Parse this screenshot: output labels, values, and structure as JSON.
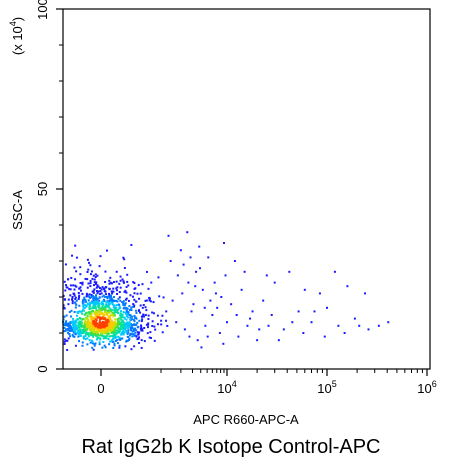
{
  "chart_data": {
    "type": "scatter",
    "subtype": "flow-cytometry-density-dot-plot",
    "title": "Rat IgG2b K Isotope Control-APC",
    "xlabel": "APC R660-APC-A",
    "ylabel": "SSC-A",
    "y_multiplier_label": "(x 10",
    "y_multiplier_exponent": "4",
    "y_multiplier_suffix": ")",
    "x_scale": "biexponential",
    "y_scale": "linear",
    "y_unit": 10000,
    "ylim": [
      0,
      100
    ],
    "xlim": [
      -1500,
      1000000
    ],
    "x_ticks": [
      {
        "value": 0,
        "base": "0",
        "exp": ""
      },
      {
        "value": 10000,
        "base": "10",
        "exp": "4"
      },
      {
        "value": 100000,
        "base": "10",
        "exp": "5"
      },
      {
        "value": 1000000,
        "base": "10",
        "exp": "6"
      }
    ],
    "y_ticks": [
      {
        "value": 0,
        "label": "0"
      },
      {
        "value": 50,
        "label": "50"
      },
      {
        "value": 100,
        "label": "100"
      }
    ],
    "grid": false,
    "legend": "none",
    "density_colors": [
      "#1a1aff",
      "#0078ff",
      "#00c8ff",
      "#00e0a0",
      "#40e040",
      "#c8e000",
      "#ffc800",
      "#ff4000"
    ],
    "population": {
      "name": "main cluster",
      "x_center": 0,
      "x_spread": 380,
      "y_center": 13,
      "y_spread": 4.5,
      "y_range": [
        5,
        40
      ],
      "event_count": 1400
    },
    "sparse_events": [
      [
        1300,
        37
      ],
      [
        2500,
        38
      ],
      [
        3800,
        34
      ],
      [
        5200,
        31
      ],
      [
        9000,
        35
      ],
      [
        12000,
        30
      ],
      [
        1800,
        26
      ],
      [
        2600,
        24
      ],
      [
        3400,
        27
      ],
      [
        4300,
        22
      ],
      [
        6500,
        24
      ],
      [
        8200,
        20
      ],
      [
        11000,
        18
      ],
      [
        14000,
        22
      ],
      [
        18000,
        16
      ],
      [
        23000,
        19
      ],
      [
        30000,
        24
      ],
      [
        42000,
        27
      ],
      [
        60000,
        22
      ],
      [
        85000,
        21
      ],
      [
        120000,
        27
      ],
      [
        160000,
        23
      ],
      [
        240000,
        21
      ],
      [
        1200,
        16
      ],
      [
        1700,
        13
      ],
      [
        2300,
        11
      ],
      [
        2900,
        16
      ],
      [
        3600,
        8
      ],
      [
        4700,
        12
      ],
      [
        6000,
        15
      ],
      [
        7800,
        10
      ],
      [
        10000,
        13
      ],
      [
        13000,
        9
      ],
      [
        17000,
        14
      ],
      [
        21000,
        11
      ],
      [
        26000,
        12
      ],
      [
        33000,
        8
      ],
      [
        45000,
        13
      ],
      [
        58000,
        10
      ],
      [
        75000,
        16
      ],
      [
        95000,
        9
      ],
      [
        130000,
        12
      ],
      [
        190000,
        14
      ],
      [
        260000,
        11
      ],
      [
        330000,
        12
      ],
      [
        410000,
        13
      ],
      [
        1500,
        19
      ],
      [
        2100,
        21
      ],
      [
        2700,
        9
      ],
      [
        3100,
        18
      ],
      [
        4100,
        6
      ],
      [
        5600,
        19
      ],
      [
        7100,
        17
      ],
      [
        8800,
        7
      ],
      [
        12500,
        15
      ],
      [
        16000,
        12
      ],
      [
        20000,
        8
      ],
      [
        28000,
        15
      ],
      [
        37000,
        11
      ],
      [
        52000,
        16
      ],
      [
        70000,
        13
      ],
      [
        100000,
        17
      ],
      [
        150000,
        10
      ],
      [
        210000,
        12
      ],
      [
        1400,
        30
      ],
      [
        2000,
        33
      ],
      [
        2200,
        29
      ],
      [
        2800,
        31
      ],
      [
        3300,
        23
      ],
      [
        3900,
        28
      ],
      [
        4600,
        17
      ],
      [
        5100,
        9
      ],
      [
        6800,
        21
      ],
      [
        9500,
        26
      ],
      [
        15000,
        27
      ],
      [
        25000,
        26
      ]
    ]
  }
}
